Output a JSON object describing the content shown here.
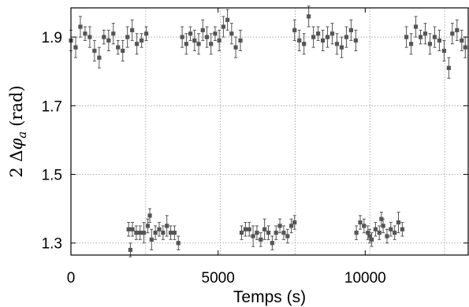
{
  "chart_data": {
    "type": "scatter",
    "title": "",
    "xlabel": "Temps (s)",
    "ylabel": "2 Δφa (rad)",
    "ylabel_parts": {
      "prefix": "2 Δ",
      "phi": "φ",
      "sub": "a",
      "unit": "(rad)"
    },
    "xlim": [
      0,
      13500
    ],
    "ylim": [
      1.265,
      1.985
    ],
    "xticks": [
      0,
      5000,
      10000
    ],
    "xtick_labels": [
      "0",
      "5000",
      "10000"
    ],
    "yticks": [
      1.3,
      1.5,
      1.7,
      1.9
    ],
    "ytick_labels": [
      "1.3",
      "1.5",
      "1.7",
      "1.9"
    ],
    "grid_x": [
      2540,
      5080,
      7620,
      10160,
      12700
    ],
    "grid": true,
    "marker": "square",
    "color": "#555555",
    "series": [
      {
        "values": [
          [
            0,
            1.89,
            0.03
          ],
          [
            160,
            1.87,
            0.03
          ],
          [
            320,
            1.93,
            0.03
          ],
          [
            480,
            1.91,
            0.02
          ],
          [
            640,
            1.9,
            0.03
          ],
          [
            800,
            1.86,
            0.03
          ],
          [
            960,
            1.84,
            0.03
          ],
          [
            1120,
            1.9,
            0.02
          ],
          [
            1280,
            1.89,
            0.03
          ],
          [
            1440,
            1.91,
            0.03
          ],
          [
            1600,
            1.87,
            0.02
          ],
          [
            1760,
            1.86,
            0.03
          ],
          [
            1920,
            1.9,
            0.03
          ],
          [
            2080,
            1.92,
            0.03
          ],
          [
            2240,
            1.88,
            0.03
          ],
          [
            2400,
            1.89,
            0.02
          ],
          [
            2560,
            1.91,
            0.02
          ],
          [
            3780,
            1.9,
            0.03
          ],
          [
            3920,
            1.88,
            0.03
          ],
          [
            4060,
            1.91,
            0.02
          ],
          [
            4200,
            1.89,
            0.03
          ],
          [
            4340,
            1.88,
            0.03
          ],
          [
            4480,
            1.92,
            0.03
          ],
          [
            4620,
            1.9,
            0.03
          ],
          [
            4760,
            1.88,
            0.03
          ],
          [
            4900,
            1.91,
            0.02
          ],
          [
            5040,
            1.89,
            0.03
          ],
          [
            5180,
            1.93,
            0.03
          ],
          [
            5320,
            1.95,
            0.03
          ],
          [
            5460,
            1.91,
            0.03
          ],
          [
            5600,
            1.87,
            0.03
          ],
          [
            5760,
            1.89,
            0.03
          ],
          [
            7600,
            1.92,
            0.03
          ],
          [
            7760,
            1.89,
            0.03
          ],
          [
            7920,
            1.88,
            0.03
          ],
          [
            8080,
            1.96,
            0.03
          ],
          [
            8240,
            1.9,
            0.03
          ],
          [
            8400,
            1.91,
            0.02
          ],
          [
            8560,
            1.89,
            0.03
          ],
          [
            8720,
            1.9,
            0.03
          ],
          [
            8880,
            1.91,
            0.03
          ],
          [
            9040,
            1.88,
            0.03
          ],
          [
            9200,
            1.87,
            0.03
          ],
          [
            9360,
            1.9,
            0.03
          ],
          [
            9520,
            1.92,
            0.03
          ],
          [
            9680,
            1.89,
            0.03
          ],
          [
            11400,
            1.9,
            0.03
          ],
          [
            11560,
            1.88,
            0.03
          ],
          [
            11720,
            1.93,
            0.03
          ],
          [
            11880,
            1.9,
            0.02
          ],
          [
            12040,
            1.91,
            0.03
          ],
          [
            12200,
            1.88,
            0.03
          ],
          [
            12360,
            1.9,
            0.03
          ],
          [
            12520,
            1.89,
            0.03
          ],
          [
            12680,
            1.86,
            0.03
          ],
          [
            12840,
            1.81,
            0.03
          ],
          [
            12960,
            1.91,
            0.03
          ],
          [
            13120,
            1.92,
            0.03
          ],
          [
            13280,
            1.89,
            0.03
          ],
          [
            13400,
            1.87,
            0.03
          ]
        ]
      },
      {
        "values": [
          [
            1960,
            1.34,
            0.02
          ],
          [
            2090,
            1.34,
            0.02
          ],
          [
            2220,
            1.33,
            0.02
          ],
          [
            2350,
            1.33,
            0.02
          ],
          [
            2480,
            1.33,
            0.03
          ],
          [
            2610,
            1.35,
            0.02
          ],
          [
            2740,
            1.31,
            0.03
          ],
          [
            2870,
            1.33,
            0.02
          ],
          [
            3000,
            1.34,
            0.02
          ],
          [
            3130,
            1.33,
            0.02
          ],
          [
            3260,
            1.35,
            0.03
          ],
          [
            3390,
            1.33,
            0.02
          ],
          [
            3520,
            1.33,
            0.02
          ],
          [
            3650,
            1.3,
            0.02
          ],
          [
            2020,
            1.28,
            0.02
          ],
          [
            2680,
            1.38,
            0.02
          ],
          [
            5800,
            1.33,
            0.02
          ],
          [
            5930,
            1.34,
            0.02
          ],
          [
            6060,
            1.34,
            0.02
          ],
          [
            6190,
            1.32,
            0.03
          ],
          [
            6320,
            1.33,
            0.02
          ],
          [
            6450,
            1.31,
            0.02
          ],
          [
            6580,
            1.34,
            0.03
          ],
          [
            6710,
            1.33,
            0.02
          ],
          [
            6840,
            1.3,
            0.02
          ],
          [
            6970,
            1.33,
            0.02
          ],
          [
            7100,
            1.35,
            0.02
          ],
          [
            7230,
            1.33,
            0.02
          ],
          [
            7360,
            1.32,
            0.02
          ],
          [
            7490,
            1.35,
            0.02
          ],
          [
            7600,
            1.36,
            0.02
          ],
          [
            9700,
            1.33,
            0.02
          ],
          [
            9830,
            1.36,
            0.02
          ],
          [
            9960,
            1.35,
            0.02
          ],
          [
            10090,
            1.33,
            0.02
          ],
          [
            10220,
            1.31,
            0.02
          ],
          [
            10350,
            1.34,
            0.02
          ],
          [
            10480,
            1.33,
            0.02
          ],
          [
            10610,
            1.35,
            0.02
          ],
          [
            10740,
            1.32,
            0.02
          ],
          [
            10870,
            1.34,
            0.02
          ],
          [
            11000,
            1.33,
            0.02
          ],
          [
            11130,
            1.36,
            0.03
          ],
          [
            11260,
            1.34,
            0.02
          ],
          [
            10150,
            1.32,
            0.02
          ],
          [
            10550,
            1.37,
            0.02
          ]
        ]
      }
    ]
  }
}
